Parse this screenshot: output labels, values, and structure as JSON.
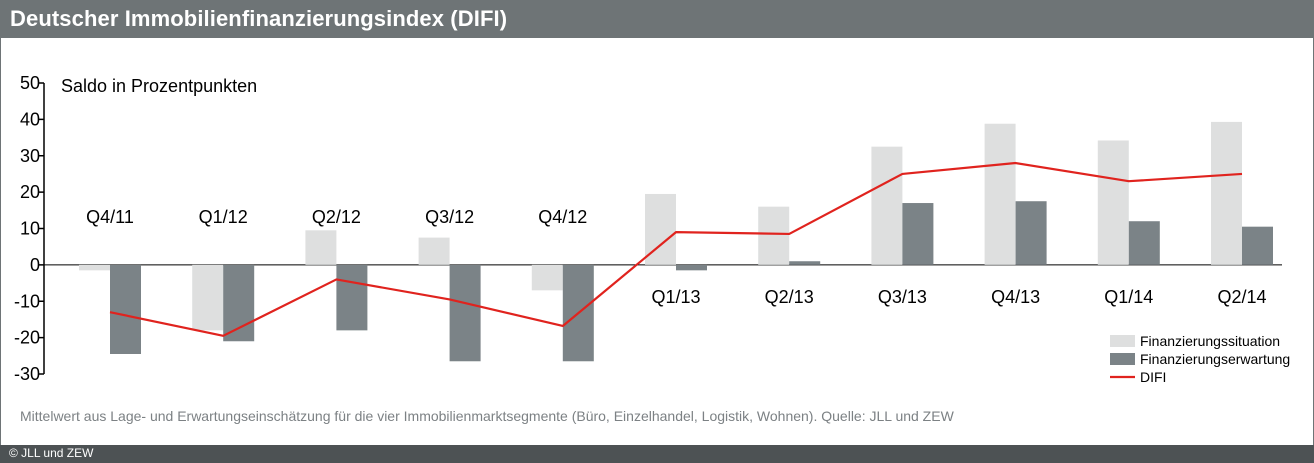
{
  "title": "Deutscher Immobilienfinanzierungsindex (DIFI)",
  "note": "Mittelwert aus Lage- und Erwartungseinschätzung für die vier Immobilienmarktsegmente (Büro, Einzelhandel, Logistik, Wohnen). Quelle: JLL und ZEW",
  "copyright": "© JLL und ZEW",
  "colors": {
    "header": "#6e7476",
    "footer": "#4d5254",
    "situation": "#dedfdf",
    "erwartung": "#7b8387",
    "difi": "#e0231e"
  },
  "chart_data": {
    "type": "bar",
    "title": "Deutscher Immobilienfinanzierungsindex (DIFI)",
    "ylabel": "Saldo in Prozentpunkten",
    "ylim": [
      -30,
      50
    ],
    "yticks": [
      50,
      40,
      30,
      20,
      10,
      0,
      -10,
      -20,
      -30
    ],
    "categories": [
      "Q4/11",
      "Q1/12",
      "Q2/12",
      "Q3/12",
      "Q4/12",
      "Q1/13",
      "Q2/13",
      "Q3/13",
      "Q4/13",
      "Q1/14",
      "Q2/14"
    ],
    "series": [
      {
        "name": "Finanzierungssituation",
        "kind": "bar",
        "values": [
          -1.5,
          -18,
          9.5,
          7.5,
          -7,
          19.5,
          16,
          32.5,
          38.8,
          34.2,
          39.3
        ]
      },
      {
        "name": "Finanzierungserwartung",
        "kind": "bar",
        "values": [
          -24.5,
          -21,
          -18,
          -26.5,
          -26.5,
          -1.5,
          1,
          17,
          17.5,
          12,
          10.5
        ]
      },
      {
        "name": "DIFI",
        "kind": "line",
        "values": [
          -13,
          -19.5,
          -4,
          -9.5,
          -16.8,
          9,
          8.5,
          25,
          28,
          23,
          25
        ]
      }
    ],
    "legend_position": "bottom-right",
    "grid": false
  }
}
